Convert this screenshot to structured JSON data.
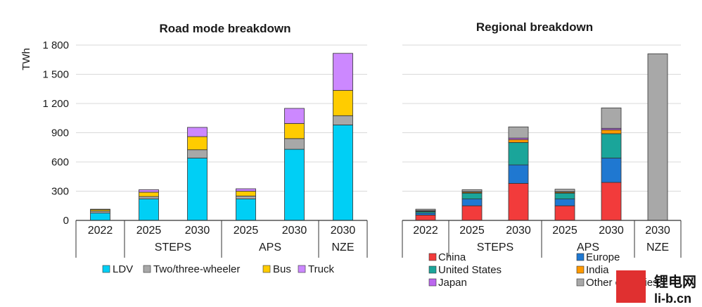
{
  "chart_data": [
    {
      "type": "bar",
      "stacked": true,
      "title": "Road mode breakdown",
      "ylabel": "TWh",
      "ylim": [
        0,
        1800
      ],
      "yticks": [
        "0",
        "300",
        "600",
        "900",
        "1 200",
        "1 500",
        "1 800"
      ],
      "grid": true,
      "legend_position": "bottom",
      "categories": [
        "2022",
        "2025",
        "2030",
        "2025",
        "2030",
        "2030"
      ],
      "groups": [
        {
          "label": "",
          "span": 1
        },
        {
          "label": "STEPS",
          "span": 2
        },
        {
          "label": "APS",
          "span": 2
        },
        {
          "label": "NZE",
          "span": 1
        }
      ],
      "series": [
        {
          "name": "LDV",
          "color": "#00CFF5",
          "values": [
            75,
            220,
            640,
            220,
            730,
            980
          ]
        },
        {
          "name": "Two/three-wheeler",
          "color": "#A8A8A8",
          "values": [
            20,
            25,
            85,
            30,
            110,
            95
          ]
        },
        {
          "name": "Bus",
          "color": "#FFCC00",
          "values": [
            15,
            45,
            135,
            50,
            155,
            260
          ]
        },
        {
          "name": "Truck",
          "color": "#CC88FF",
          "values": [
            5,
            25,
            95,
            25,
            155,
            380
          ]
        }
      ]
    },
    {
      "type": "bar",
      "stacked": true,
      "title": "Regional breakdown",
      "ylim": [
        0,
        1800
      ],
      "grid": true,
      "legend_position": "bottom",
      "categories": [
        "2022",
        "2025",
        "2030",
        "2025",
        "2030",
        "2030"
      ],
      "groups": [
        {
          "label": "",
          "span": 1
        },
        {
          "label": "STEPS",
          "span": 2
        },
        {
          "label": "APS",
          "span": 2
        },
        {
          "label": "NZE",
          "span": 1
        }
      ],
      "series": [
        {
          "name": "China",
          "color": "#F23B3B",
          "values": [
            55,
            150,
            380,
            150,
            390,
            0
          ]
        },
        {
          "name": "Europe",
          "color": "#1F78D1",
          "values": [
            20,
            70,
            190,
            70,
            250,
            0
          ]
        },
        {
          "name": "United States",
          "color": "#1AA59A",
          "values": [
            15,
            60,
            230,
            60,
            250,
            0
          ]
        },
        {
          "name": "India",
          "color": "#FF9900",
          "values": [
            5,
            10,
            30,
            10,
            40,
            0
          ]
        },
        {
          "name": "Japan",
          "color": "#BB66EE",
          "values": [
            5,
            5,
            15,
            5,
            15,
            0
          ]
        },
        {
          "name": "Other countries",
          "color": "#A8A8A8",
          "values": [
            15,
            20,
            115,
            25,
            210,
            1710
          ]
        }
      ]
    }
  ],
  "watermark": {
    "cn": "锂电网",
    "en": "li-b.cn",
    "logo_color": "#E03030"
  }
}
